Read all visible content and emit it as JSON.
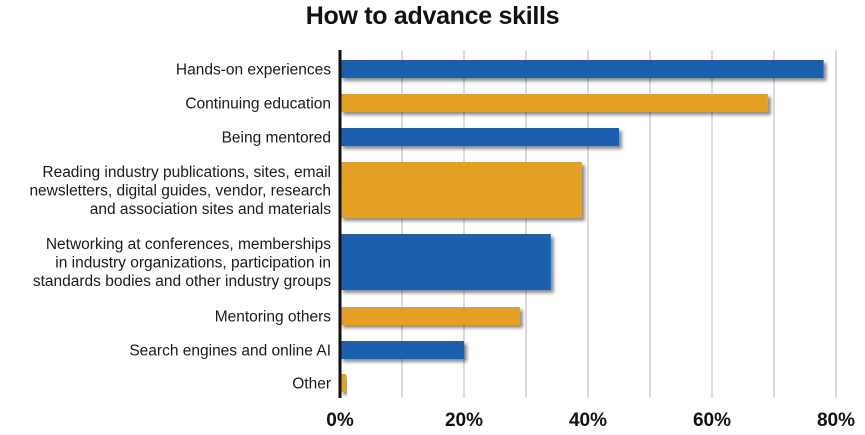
{
  "chart_data": {
    "type": "bar",
    "orientation": "horizontal",
    "title": "How to advance skills",
    "xlabel": "",
    "ylabel": "",
    "xlim": [
      0,
      80
    ],
    "x_ticks": [
      "0%",
      "20%",
      "40%",
      "60%",
      "80%"
    ],
    "grid": true,
    "legend": "none",
    "categories": [
      [
        "Hands-on experiences"
      ],
      [
        "Continuing education"
      ],
      [
        "Being mentored"
      ],
      [
        "Reading industry publications, sites, email",
        "newsletters, digital guides, vendor, research",
        "and association sites and materials"
      ],
      [
        "Networking at conferences, memberships",
        "in industry organizations, participation in",
        "standards bodies and other industry groups"
      ],
      [
        "Mentoring others"
      ],
      [
        "Search engines and online AI"
      ],
      [
        "Other"
      ]
    ],
    "values": [
      78,
      69,
      45,
      39,
      34,
      29,
      20,
      1
    ],
    "colors": [
      "#1f5fad",
      "#e3a021",
      "#1f5fad",
      "#e3a021",
      "#1f5fad",
      "#e3a021",
      "#1f5fad",
      "#e3a021"
    ],
    "unit": "%"
  }
}
